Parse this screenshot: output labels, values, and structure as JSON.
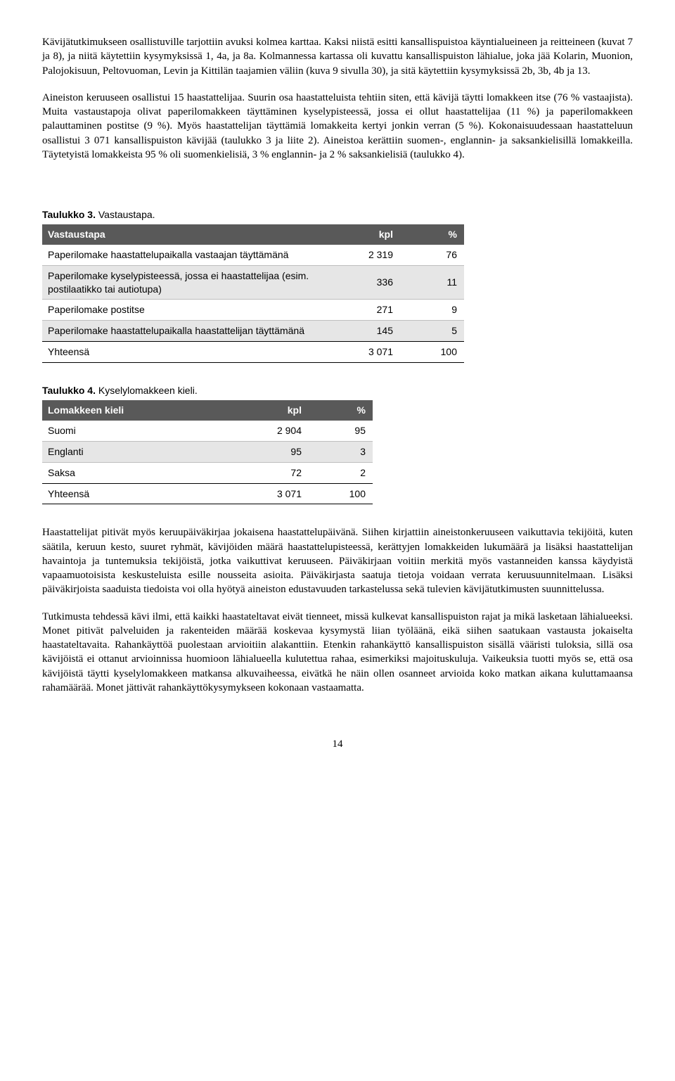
{
  "paragraphs": {
    "p1": "Kävijätutkimukseen osallistuville tarjottiin avuksi kolmea karttaa. Kaksi niistä esitti kansallispuistoa käyntialueineen ja reitteineen (kuvat 7 ja 8), ja niitä käytettiin kysymyksissä 1, 4a, ja 8a. Kolmannessa kartassa oli kuvattu kansallispuiston lähialue, joka jää Kolarin, Muonion, Palojokisuun, Peltovuoman, Levin ja Kittilän taajamien väliin (kuva 9 sivulla 30), ja sitä käytettiin kysymyksissä 2b, 3b, 4b ja 13.",
    "p2": "Aineiston keruuseen osallistui 15 haastattelijaa. Suurin osa haastatteluista tehtiin siten, että kävijä täytti lomakkeen itse (76 % vastaajista). Muita vastaustapoja olivat paperilomakkeen täyttäminen kyselypisteessä, jossa ei ollut haastattelijaa (11 %) ja paperilomakkeen palauttaminen postitse (9 %). Myös haastattelijan täyttämiä lomakkeita kertyi jonkin verran (5 %). Kokonaisuudessaan haastatteluun osallistui 3 071 kansallispuiston kävijää (taulukko 3 ja liite 2). Aineistoa kerättiin suomen-, englannin- ja saksankielisillä lomakkeilla. Täytetyistä lomakkeista 95 % oli suomenkielisiä, 3 % englannin- ja 2 % saksankielisiä (taulukko 4).",
    "p3": "Haastattelijat pitivät myös keruupäiväkirjaa jokaisena haastattelupäivänä. Siihen kirjattiin aineistonkeruuseen vaikuttavia tekijöitä, kuten säätila, keruun kesto, suuret ryhmät, kävijöiden määrä haastattelupisteessä, kerättyjen lomakkeiden lukumäärä ja lisäksi haastattelijan havaintoja ja tuntemuksia tekijöistä, jotka vaikuttivat keruuseen. Päiväkirjaan voitiin merkitä myös vastanneiden kanssa käydyistä vapaamuotoisista keskusteluista esille nousseita asioita. Päiväkirjasta saatuja tietoja voidaan verrata keruusuunnitelmaan. Lisäksi päiväkirjoista saaduista tiedoista voi olla hyötyä aineiston edustavuuden tarkastelussa sekä tulevien kävijätutkimusten suunnittelussa.",
    "p4": "Tutkimusta tehdessä kävi ilmi, että kaikki haastateltavat eivät tienneet, missä kulkevat kansallispuiston rajat ja mikä lasketaan lähialueeksi. Monet pitivät palveluiden ja rakenteiden määrää koskevaa kysymystä liian työläänä, eikä siihen saatukaan vastausta jokaiselta haastateltavaita. Rahankäyttöä puolestaan arvioitiin alakanttiin. Etenkin rahankäyttö kansallispuiston sisällä vääristi tuloksia, sillä osa kävijöistä ei ottanut arvioinnissa huomioon lähialueella kulutettua rahaa, esimerkiksi majoituskuluja. Vaikeuksia tuotti myös se, että osa kävijöistä täytti kyselylomakkeen matkansa alkuvaiheessa, eivätkä he näin ollen osanneet arvioida koko matkan aikana kuluttamaansa rahamäärää. Monet jättivät rahankäyttökysymykseen kokonaan vastaamatta."
  },
  "table3": {
    "caption_bold": "Taulukko 3.",
    "caption_rest": " Vastaustapa.",
    "headers": [
      "Vastaustapa",
      "kpl",
      "%"
    ],
    "rows": [
      {
        "label": "Paperilomake haastattelupaikalla vastaajan täyttämänä",
        "kpl": "2 319",
        "pct": "76",
        "shade": false
      },
      {
        "label": "Paperilomake kyselypisteessä, jossa ei haastattelijaa (esim. postilaatikko tai autiotupa)",
        "kpl": "336",
        "pct": "11",
        "shade": true
      },
      {
        "label": "Paperilomake postitse",
        "kpl": "271",
        "pct": "9",
        "shade": false
      },
      {
        "label": "Paperilomake haastattelupaikalla haastattelijan täyttämänä",
        "kpl": "145",
        "pct": "5",
        "shade": true
      }
    ],
    "total": {
      "label": "Yhteensä",
      "kpl": "3 071",
      "pct": "100"
    }
  },
  "table4": {
    "caption_bold": "Taulukko 4.",
    "caption_rest": " Kyselylomakkeen kieli.",
    "headers": [
      "Lomakkeen kieli",
      "kpl",
      "%"
    ],
    "rows": [
      {
        "label": "Suomi",
        "kpl": "2 904",
        "pct": "95",
        "shade": false
      },
      {
        "label": "Englanti",
        "kpl": "95",
        "pct": "3",
        "shade": true
      },
      {
        "label": "Saksa",
        "kpl": "72",
        "pct": "2",
        "shade": false
      }
    ],
    "total": {
      "label": "Yhteensä",
      "kpl": "3 071",
      "pct": "100"
    }
  },
  "page_number": "14",
  "style": {
    "header_bg": "#595959",
    "header_fg": "#ffffff",
    "shade_bg": "#e6e6e6",
    "body_font": "Times New Roman",
    "table_font": "Arial",
    "body_size_pt": 11,
    "table_size_pt": 10
  }
}
